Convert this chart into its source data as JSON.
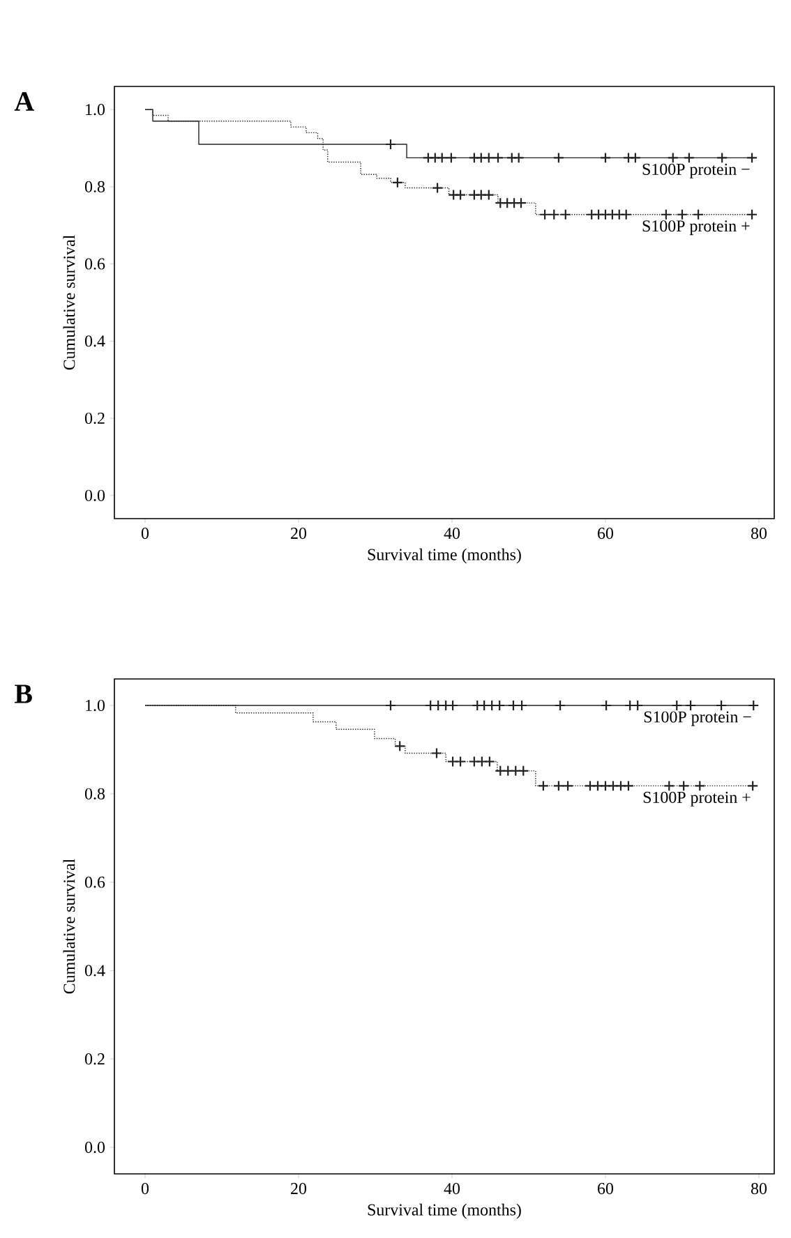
{
  "chart_data": [
    {
      "type": "step",
      "title": "A",
      "xlabel": "Survival time (months)",
      "ylabel": "Cumulative survival",
      "xlim": [
        -4,
        82
      ],
      "ylim": [
        -0.06,
        1.06
      ],
      "xticks": [
        0,
        20,
        40,
        60,
        80
      ],
      "yticks": [
        {
          "value": 0,
          "label": "0.0"
        },
        {
          "value": 0.2,
          "label": "0.2"
        },
        {
          "value": 0.4,
          "label": "0.4"
        },
        {
          "value": 0.6,
          "label": "0.6"
        },
        {
          "value": 0.8,
          "label": "0.8"
        },
        {
          "value": 1,
          "label": "1.0"
        }
      ],
      "series": [
        {
          "name": "S100P protein −",
          "type": "step",
          "color": "#222222",
          "line_style": "solid",
          "marker": "none",
          "x": [
            0,
            1,
            7,
            34.1,
            79.1
          ],
          "values": [
            1.0,
            0.97,
            0.91,
            0.875,
            0.875
          ]
        },
        {
          "type": "scatter",
          "color": "#222222",
          "marker": "cross",
          "x": [
            32.0,
            36.9,
            37.8,
            38.7,
            39.9,
            42.9,
            43.8,
            44.8,
            46.0,
            47.8,
            48.7,
            53.9,
            60.0,
            63.0,
            63.9,
            68.8,
            70.9,
            75.2,
            79.1
          ],
          "values": [
            0.91,
            0.875,
            0.875,
            0.875,
            0.875,
            0.875,
            0.875,
            0.875,
            0.875,
            0.875,
            0.875,
            0.875,
            0.875,
            0.875,
            0.875,
            0.875,
            0.875,
            0.875,
            0.875
          ]
        },
        {
          "name": "S100P protein +",
          "type": "step",
          "color": "#222222",
          "line_style": "dotted",
          "marker": "none",
          "x": [
            0,
            1,
            3,
            19,
            21,
            22.5,
            23.2,
            23.8,
            28.1,
            30.2,
            32.0,
            33.9,
            39.6,
            46.0,
            50.9,
            79.1
          ],
          "values": [
            1.0,
            0.985,
            0.97,
            0.955,
            0.94,
            0.925,
            0.895,
            0.864,
            0.832,
            0.822,
            0.811,
            0.797,
            0.779,
            0.758,
            0.728,
            0.728
          ]
        },
        {
          "type": "scatter",
          "color": "#222222",
          "marker": "cross",
          "x": [
            32.9,
            38.1,
            40.2,
            41.1,
            42.9,
            43.8,
            44.8,
            46.3,
            47.2,
            48.1,
            49.0,
            52.1,
            53.3,
            54.8,
            58.2,
            59.1,
            60.0,
            60.9,
            61.8,
            62.7,
            67.9,
            70.0,
            72.1,
            79.1
          ],
          "values": [
            0.811,
            0.797,
            0.779,
            0.779,
            0.779,
            0.779,
            0.779,
            0.758,
            0.758,
            0.758,
            0.758,
            0.728,
            0.728,
            0.728,
            0.728,
            0.728,
            0.728,
            0.728,
            0.728,
            0.728,
            0.728,
            0.728,
            0.728,
            0.728
          ]
        }
      ]
    },
    {
      "type": "step",
      "title": "B",
      "xlabel": "Survival time (months)",
      "ylabel": "Cumulative survival",
      "xlim": [
        -4,
        82
      ],
      "ylim": [
        -0.06,
        1.06
      ],
      "xticks": [
        0,
        20,
        40,
        60,
        80
      ],
      "yticks": [
        {
          "value": 0,
          "label": "0.0"
        },
        {
          "value": 0.2,
          "label": "0.2"
        },
        {
          "value": 0.4,
          "label": "0.4"
        },
        {
          "value": 0.6,
          "label": "0.6"
        },
        {
          "value": 0.8,
          "label": "0.8"
        },
        {
          "value": 1,
          "label": "1.0"
        }
      ],
      "series": [
        {
          "name": "S100P protein −",
          "type": "step",
          "color": "#222222",
          "line_style": "solid",
          "marker": "none",
          "x": [
            0,
            79.3
          ],
          "values": [
            1.0,
            1.0
          ]
        },
        {
          "type": "scatter",
          "color": "#222222",
          "marker": "cross",
          "x": [
            32.0,
            37.2,
            38.2,
            39.2,
            40.1,
            43.3,
            44.2,
            45.2,
            46.2,
            48.0,
            49.1,
            54.1,
            60.1,
            63.2,
            64.2,
            69.3,
            71.1,
            75.1,
            79.3
          ],
          "values": [
            1,
            1,
            1,
            1,
            1,
            1,
            1,
            1,
            1,
            1,
            1,
            1,
            1,
            1,
            1,
            1,
            1,
            1,
            1
          ]
        },
        {
          "name": "S100P protein +",
          "type": "step",
          "color": "#222222",
          "line_style": "dotted",
          "marker": "none",
          "x": [
            0,
            11.8,
            21.9,
            24.9,
            29.9,
            32.6,
            33.9,
            39.2,
            45.9,
            50.9,
            79.2
          ],
          "values": [
            1.0,
            0.983,
            0.963,
            0.946,
            0.925,
            0.908,
            0.892,
            0.873,
            0.852,
            0.818,
            0.818
          ]
        },
        {
          "type": "scatter",
          "color": "#222222",
          "marker": "cross",
          "x": [
            33.2,
            38.0,
            40.1,
            41.1,
            42.9,
            43.9,
            44.9,
            46.3,
            47.3,
            48.3,
            49.3,
            51.9,
            53.9,
            55.1,
            58.0,
            59.0,
            60.0,
            61.0,
            62.0,
            63.0,
            68.3,
            70.2,
            72.3,
            79.2
          ],
          "values": [
            0.908,
            0.892,
            0.873,
            0.873,
            0.873,
            0.873,
            0.873,
            0.852,
            0.852,
            0.852,
            0.852,
            0.818,
            0.818,
            0.818,
            0.818,
            0.818,
            0.818,
            0.818,
            0.818,
            0.818,
            0.818,
            0.818,
            0.818,
            0.818
          ]
        }
      ]
    }
  ]
}
